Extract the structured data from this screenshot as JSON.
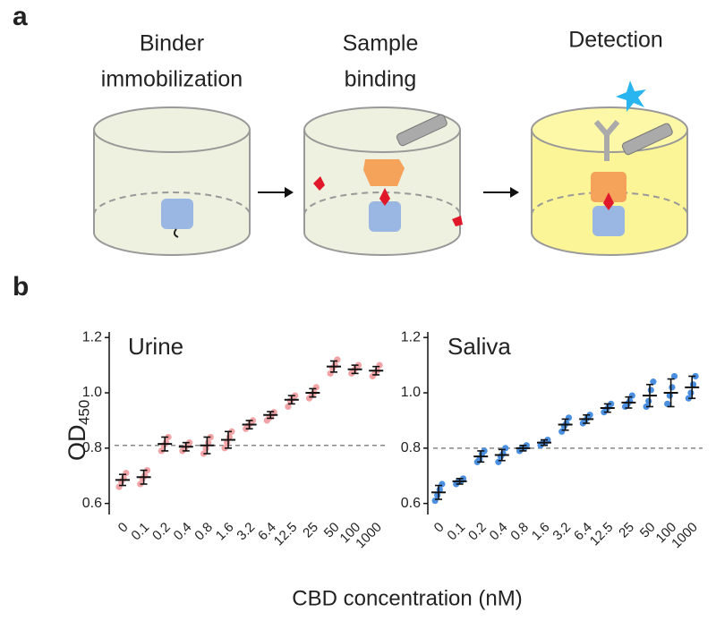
{
  "diagram": {
    "panel_label": "a",
    "steps": [
      {
        "label": [
          "Binder",
          "immobilization"
        ]
      },
      {
        "label": [
          "Sample",
          "binding"
        ]
      },
      {
        "label": [
          "Detection"
        ]
      }
    ]
  },
  "chart_panel_label": "b",
  "x_label": "CBD concentration (nM)",
  "chart_data": [
    {
      "type": "dotplot",
      "title": "Urine",
      "y_label": "OD",
      "y_label_subscript": "450",
      "categories": [
        "0",
        "0.1",
        "0.2",
        "0.4",
        "0.8",
        "1.6",
        "3.2",
        "6.4",
        "12.5",
        "25",
        "50",
        "100",
        "1000"
      ],
      "values": [
        0.685,
        0.695,
        0.815,
        0.805,
        0.81,
        0.83,
        0.885,
        0.92,
        0.975,
        1.0,
        1.095,
        1.085,
        1.08
      ],
      "errors": [
        0.02,
        0.025,
        0.025,
        0.015,
        0.03,
        0.03,
        0.015,
        0.012,
        0.015,
        0.015,
        0.02,
        0.015,
        0.015
      ],
      "points": [
        [
          0.66,
          0.68,
          0.69,
          0.71
        ],
        [
          0.67,
          0.69,
          0.7,
          0.72
        ],
        [
          0.79,
          0.81,
          0.82,
          0.84
        ],
        [
          0.79,
          0.8,
          0.81,
          0.82
        ],
        [
          0.78,
          0.8,
          0.82,
          0.84
        ],
        [
          0.8,
          0.82,
          0.84,
          0.86
        ],
        [
          0.87,
          0.88,
          0.89,
          0.9
        ],
        [
          0.9,
          0.91,
          0.92,
          0.93
        ],
        [
          0.95,
          0.97,
          0.98,
          0.99
        ],
        [
          0.98,
          0.99,
          1.0,
          1.02
        ],
        [
          1.07,
          1.09,
          1.1,
          1.12
        ],
        [
          1.07,
          1.08,
          1.09,
          1.1
        ],
        [
          1.06,
          1.07,
          1.08,
          1.1
        ]
      ],
      "point_color": "#f2a3a6",
      "reference_line": 0.81,
      "ylim": [
        0.56,
        1.22
      ],
      "yticks": [
        0.6,
        0.8,
        {
          "value": 1,
          "label": "1.0"
        },
        1.2
      ]
    },
    {
      "type": "dotplot",
      "title": "Saliva",
      "categories": [
        "0",
        "0.1",
        "0.2",
        "0.4",
        "0.8",
        "1.6",
        "3.2",
        "6.4",
        "12.5",
        "25",
        "50",
        "100",
        "1000"
      ],
      "values": [
        0.64,
        0.68,
        0.77,
        0.775,
        0.8,
        0.82,
        0.885,
        0.905,
        0.945,
        0.965,
        0.99,
        1.0,
        1.02
      ],
      "errors": [
        0.025,
        0.01,
        0.02,
        0.02,
        0.01,
        0.01,
        0.02,
        0.015,
        0.015,
        0.02,
        0.04,
        0.05,
        0.04
      ],
      "points": [
        [
          0.61,
          0.63,
          0.65,
          0.67
        ],
        [
          0.67,
          0.68,
          0.68,
          0.69
        ],
        [
          0.75,
          0.76,
          0.78,
          0.79
        ],
        [
          0.75,
          0.77,
          0.78,
          0.8
        ],
        [
          0.79,
          0.8,
          0.8,
          0.81
        ],
        [
          0.81,
          0.82,
          0.82,
          0.83
        ],
        [
          0.86,
          0.88,
          0.89,
          0.91
        ],
        [
          0.89,
          0.9,
          0.91,
          0.92
        ],
        [
          0.93,
          0.94,
          0.95,
          0.96
        ],
        [
          0.95,
          0.96,
          0.97,
          0.99
        ],
        [
          0.95,
          0.97,
          1.01,
          1.04
        ],
        [
          0.96,
          0.99,
          1.02,
          1.06
        ],
        [
          0.98,
          1.0,
          1.03,
          1.06
        ]
      ],
      "point_color": "#4a8fe0",
      "reference_line": 0.8,
      "ylim": [
        0.56,
        1.22
      ],
      "yticks": [
        0.6,
        0.8,
        {
          "value": 1,
          "label": "1.0"
        },
        1.2
      ]
    }
  ]
}
